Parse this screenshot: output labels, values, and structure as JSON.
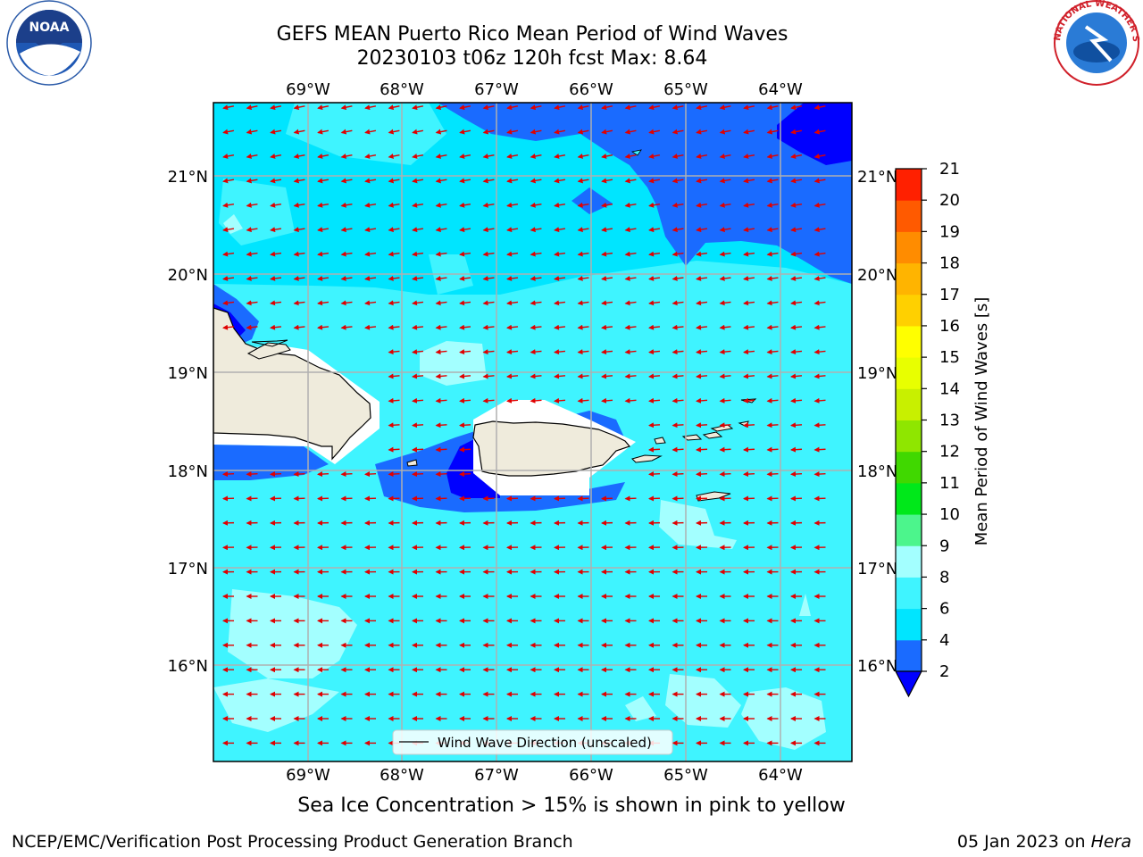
{
  "title_line1": "GEFS MEAN Puerto Rico Mean Period of Wind Waves",
  "title_line2": "20230103 t06z 120h fcst   Max: 8.64",
  "lon_labels": [
    "69°W",
    "68°W",
    "67°W",
    "66°W",
    "65°W",
    "64°W"
  ],
  "lat_labels": [
    "21°N",
    "20°N",
    "19°N",
    "18°N",
    "17°N",
    "16°N"
  ],
  "colorbar": {
    "label": "Mean Period of Wind Waves [s]",
    "ticks": [
      "2",
      "4",
      "6",
      "8",
      "9",
      "10",
      "11",
      "12",
      "13",
      "14",
      "15",
      "16",
      "17",
      "18",
      "19",
      "20",
      "21"
    ],
    "colors": [
      "#1a6bff",
      "#00e5ff",
      "#3ff4ff",
      "#a3ffff",
      "#4cf58c",
      "#00e81a",
      "#40d800",
      "#8fe600",
      "#c8f000",
      "#e8ff00",
      "#ffff00",
      "#ffd000",
      "#ffb400",
      "#ff8c00",
      "#ff5a00",
      "#ff2000"
    ],
    "under_color": "#0000ff"
  },
  "legend_label": "Wind Wave Direction (unscaled)",
  "sea_ice_note": "Sea Ice Concentration > 15% is shown in pink to yellow",
  "footer_left": "NCEP/EMC/Verification Post Processing Product Generation Branch",
  "footer_date": "05 Jan 2023 on ",
  "footer_host": "Hera",
  "logos": {
    "left": "noaa-logo",
    "right": "national-weather-service-logo"
  },
  "logo_text": {
    "noaa": "NOAA",
    "nws": "NATIONAL WEATHER SERVICE"
  },
  "arrow_color": "#e00000",
  "land_color": "#efebdc"
}
